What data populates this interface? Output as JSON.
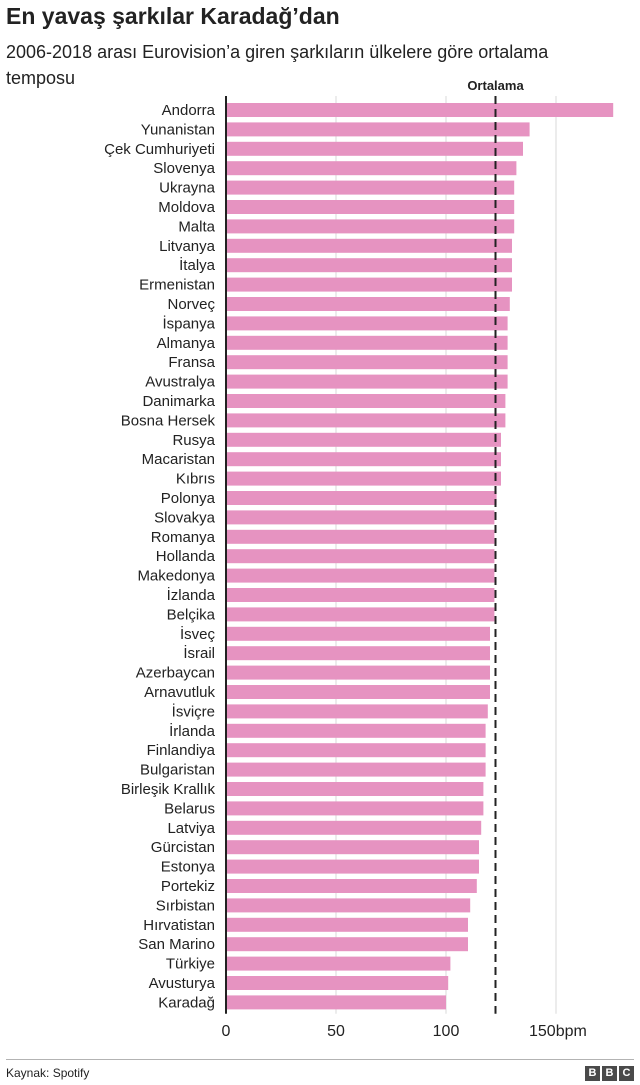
{
  "title": "En yavaş şarkılar Karadağ’dan",
  "subtitle": "2006-2018 arası Eurovision’a giren şarkıların ülkelere göre ortalama temposu",
  "source": "Kaynak: Spotify",
  "logo": [
    "B",
    "B",
    "C"
  ],
  "colors": {
    "bar": "#e693c1",
    "grid": "#d9d9d9",
    "axis": "#222222",
    "average": "#222222"
  },
  "chart_data": {
    "type": "bar",
    "orientation": "horizontal",
    "title": "En yavaş şarkılar Karadağ’dan",
    "xlabel": "",
    "ylabel": "",
    "unit": "bpm",
    "xlim": [
      0,
      175
    ],
    "grid": true,
    "xticks": [
      {
        "value": 0,
        "label": "0"
      },
      {
        "value": 50,
        "label": "50"
      },
      {
        "value": 100,
        "label": "100"
      },
      {
        "value": 150,
        "label": "150bpm"
      }
    ],
    "average": {
      "label": "Ortalama",
      "value": 122.5
    },
    "categories": [
      "Andorra",
      "Yunanistan",
      "Çek Cumhuriyeti",
      "Slovenya",
      "Ukrayna",
      "Moldova",
      "Malta",
      "Litvanya",
      "İtalya",
      "Ermenistan",
      "Norveç",
      "İspanya",
      "Almanya",
      "Fransa",
      "Avustralya",
      "Danimarka",
      "Bosna Hersek",
      "Rusya",
      "Macaristan",
      "Kıbrıs",
      "Polonya",
      "Slovakya",
      "Romanya",
      "Hollanda",
      "Makedonya",
      "İzlanda",
      "Belçika",
      "İsveç",
      "İsrail",
      "Azerbaycan",
      "Arnavutluk",
      "İsviçre",
      "İrlanda",
      "Finlandiya",
      "Bulgaristan",
      "Birleşik Krallık",
      "Belarus",
      "Latviya",
      "Gürcistan",
      "Estonya",
      "Portekiz",
      "Sırbistan",
      "Hırvatistan",
      "San Marino",
      "Türkiye",
      "Avusturya",
      "Karadağ"
    ],
    "values": [
      176,
      138,
      135,
      132,
      131,
      131,
      131,
      130,
      130,
      130,
      129,
      128,
      128,
      128,
      128,
      127,
      127,
      125,
      125,
      125,
      123,
      122,
      122,
      122,
      122,
      122,
      122,
      120,
      120,
      120,
      120,
      119,
      118,
      118,
      118,
      117,
      117,
      116,
      115,
      115,
      114,
      111,
      110,
      110,
      102,
      101,
      100
    ]
  }
}
